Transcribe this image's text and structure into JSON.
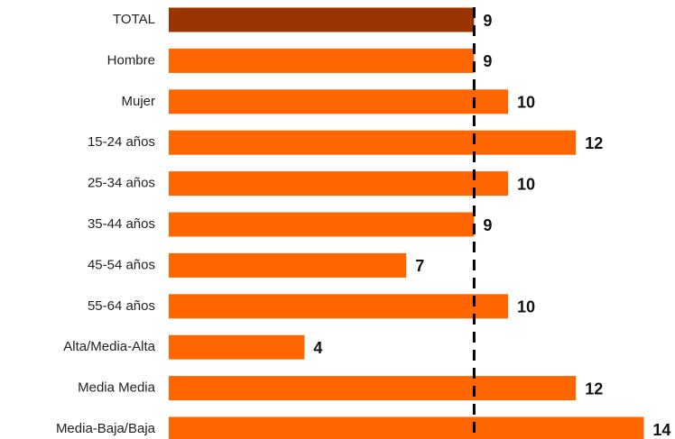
{
  "chart_data": {
    "type": "bar",
    "orientation": "horizontal",
    "categories": [
      "TOTAL",
      "Hombre",
      "Mujer",
      "15-24 años",
      "25-34 años",
      "35-44 años",
      "45-54 años",
      "55-64 años",
      "Alta/Media-Alta",
      "Media Media",
      "Media-Baja/Baja"
    ],
    "values": [
      9,
      9,
      10,
      12,
      10,
      9,
      7,
      10,
      4,
      12,
      14
    ],
    "colors": [
      "#993300",
      "#ff6600",
      "#ff6600",
      "#ff6600",
      "#ff6600",
      "#ff6600",
      "#ff6600",
      "#ff6600",
      "#ff6600",
      "#ff6600",
      "#ff6600"
    ],
    "reference_line": "dashed"
  }
}
